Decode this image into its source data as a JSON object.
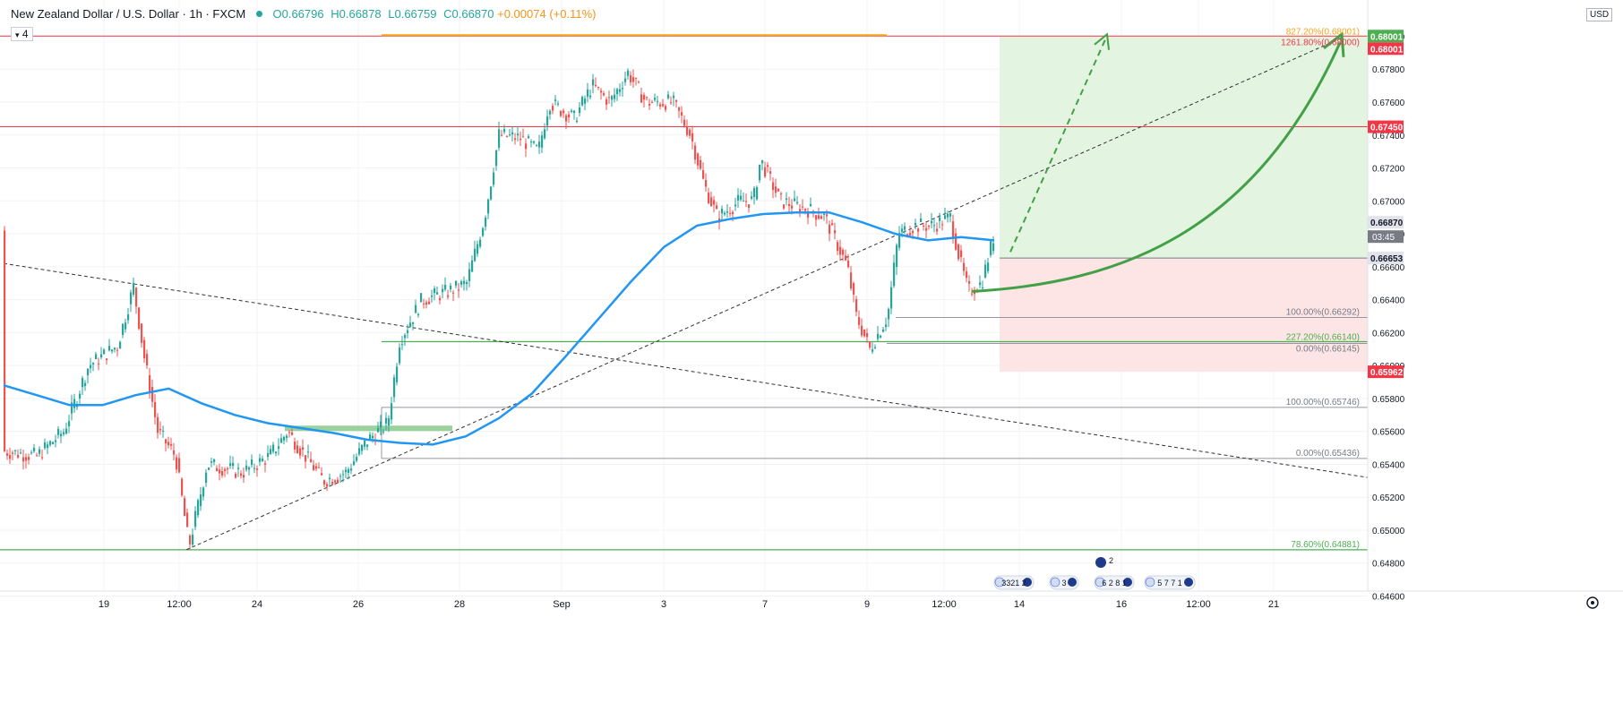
{
  "header": {
    "symbol_title": "New Zealand Dollar / U.S. Dollar · 1h · FXCM",
    "open": "O0.66796",
    "high": "H0.66878",
    "low": "L0.66759",
    "close": "C0.66870",
    "change": "+0.00074 (+0.11%)",
    "indicator_label": "4",
    "currency": "USD",
    "countdown": "03:45"
  },
  "colors": {
    "bull": "#26a69a",
    "bear": "#ef5350",
    "ma": "#2196f3",
    "resistance": "#f23645",
    "support": "#4caf50",
    "target_zone": "#e3f4e1",
    "stop_zone": "#fde5e6",
    "forecast": "#43a047",
    "orange": "#f7a41c"
  },
  "chart_data": {
    "type": "candlestick",
    "ylim": [
      0.6463,
      0.6822
    ],
    "y_ticks": [
      "0.68000",
      "0.67800",
      "0.67600",
      "0.67400",
      "0.67200",
      "0.67000",
      "0.66800",
      "0.66600",
      "0.66400",
      "0.66200",
      "0.66000",
      "0.65800",
      "0.65600",
      "0.65400",
      "0.65200",
      "0.65000",
      "0.64800",
      "0.64600"
    ],
    "x_ticks": [
      "19",
      "12:00",
      "24",
      "26",
      "28",
      "Sep",
      "3",
      "7",
      "9",
      "12:00",
      "14",
      "16",
      "12:00",
      "21"
    ],
    "price_labels": [
      {
        "label": "0.68001",
        "value": 0.68001,
        "style": "green"
      },
      {
        "label": "0.68001",
        "value": 0.68001,
        "style": "red"
      },
      {
        "label": "0.67450",
        "value": 0.6745,
        "style": "red"
      },
      {
        "label": "0.66870",
        "value": 0.6687,
        "style": "grey"
      },
      {
        "label": "0.66653",
        "value": 0.66653,
        "style": "dark"
      },
      {
        "label": "0.65962",
        "value": 0.65962,
        "style": "red"
      }
    ],
    "horizontal_levels": [
      {
        "value": 0.68001,
        "kind": "resistance"
      },
      {
        "value": 0.6745,
        "kind": "resistance"
      },
      {
        "value": 0.66145,
        "kind": "support"
      },
      {
        "value": 0.64881,
        "kind": "support"
      }
    ],
    "fib_labels": [
      {
        "text": "827.20%(0.68001)",
        "value": 0.68001,
        "color": "orange"
      },
      {
        "text": "1261.80%(0.68000)",
        "value": 0.68,
        "color": "red"
      },
      {
        "text": "100.00%(0.66292)",
        "value": 0.66292,
        "color": "grey"
      },
      {
        "text": "227.20%(0.66140)",
        "value": 0.6614,
        "color": "green"
      },
      {
        "text": "0.00%(0.66145)",
        "value": 0.66145,
        "color": "grey"
      },
      {
        "text": "100.00%(0.65746)",
        "value": 0.65746,
        "color": "grey"
      },
      {
        "text": "0.00%(0.65436)",
        "value": 0.65436,
        "color": "grey"
      },
      {
        "text": "78.60%(0.64881)",
        "value": 0.64881,
        "color": "green"
      }
    ],
    "moving_average": [
      0.6588,
      0.6582,
      0.6576,
      0.6576,
      0.6582,
      0.6586,
      0.6577,
      0.657,
      0.6565,
      0.6562,
      0.6559,
      0.6555,
      0.6553,
      0.6552,
      0.6557,
      0.6568,
      0.6583,
      0.6605,
      0.6628,
      0.6651,
      0.6672,
      0.6685,
      0.6689,
      0.6692,
      0.6693,
      0.6693,
      0.6687,
      0.668,
      0.6676,
      0.6678,
      0.6676
    ]
  },
  "events": {
    "group_1": "3321 2",
    "group_2": "3",
    "group_3_top": "2",
    "group_3": "6 2 8 1",
    "group_4": "5 7 7 1"
  }
}
